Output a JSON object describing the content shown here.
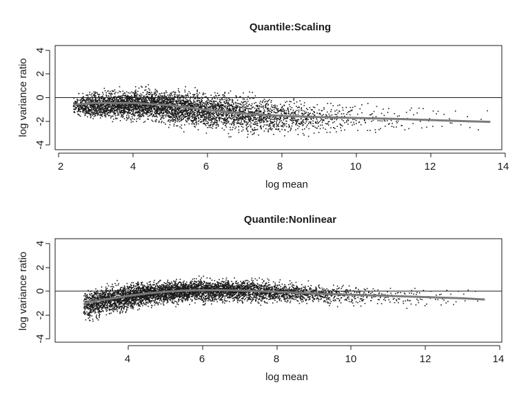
{
  "chart_data": [
    {
      "type": "scatter",
      "title": "Quantile:Scaling",
      "xlabel": "log mean",
      "ylabel": "log variance ratio",
      "xlim": [
        2,
        14
      ],
      "ylim": [
        -4,
        4
      ],
      "xticks": [
        "2",
        "4",
        "6",
        "8",
        "10",
        "12",
        "14"
      ],
      "yticks": [
        "4",
        "2",
        "0",
        "-2",
        "-4"
      ],
      "reference_line": {
        "y": 0
      },
      "colors": {
        "points": "#1a1a1a",
        "trend": "#7a7a7a"
      },
      "scatter_profile": {
        "x": [
          2.4,
          2.8,
          3.5,
          4.0,
          4.5,
          5.0,
          5.5,
          6.0,
          7.0,
          8.0,
          9.0,
          10.0,
          11.0,
          12.0,
          13.0,
          13.6
        ],
        "center": [
          -0.7,
          -0.6,
          -0.55,
          -0.55,
          -0.6,
          -0.75,
          -0.9,
          -1.1,
          -1.35,
          -1.55,
          -1.65,
          -1.7,
          -1.75,
          -1.85,
          -2.0,
          -2.05
        ],
        "spread": [
          0.45,
          0.7,
          0.75,
          0.8,
          0.85,
          0.9,
          0.95,
          1.0,
          1.0,
          0.9,
          0.85,
          0.8,
          0.8,
          0.75,
          0.7,
          0.6
        ],
        "density": [
          0.5,
          1.0,
          1.2,
          1.3,
          1.3,
          1.25,
          1.15,
          1.0,
          0.75,
          0.45,
          0.22,
          0.1,
          0.05,
          0.025,
          0.015,
          0.01
        ]
      },
      "trend_line": {
        "x": [
          2.4,
          3.0,
          4.0,
          5.0,
          6.0,
          7.0,
          8.0,
          9.0,
          10.0,
          11.0,
          12.0,
          13.0,
          13.6
        ],
        "y": [
          -0.6,
          -0.45,
          -0.45,
          -0.65,
          -1.05,
          -1.35,
          -1.55,
          -1.65,
          -1.72,
          -1.8,
          -1.9,
          -2.0,
          -2.05
        ]
      }
    },
    {
      "type": "scatter",
      "title": "Quantile:Nonlinear",
      "xlabel": "log mean",
      "ylabel": "log variance ratio",
      "xlim": [
        2.6,
        14
      ],
      "ylim": [
        -4,
        4
      ],
      "xticks": [
        "4",
        "6",
        "8",
        "10",
        "12",
        "14"
      ],
      "yticks": [
        "4",
        "2",
        "0",
        "-2",
        "-4"
      ],
      "reference_line": {
        "y": 0
      },
      "colors": {
        "points": "#1a1a1a",
        "trend": "#7a7a7a"
      },
      "scatter_profile": {
        "x": [
          2.8,
          3.0,
          3.5,
          4.0,
          4.5,
          5.0,
          5.5,
          6.0,
          6.5,
          7.0,
          8.0,
          9.0,
          10.0,
          11.0,
          12.0,
          13.0,
          13.6
        ],
        "center": [
          -1.2,
          -1.0,
          -0.7,
          -0.45,
          -0.2,
          -0.05,
          0.05,
          0.1,
          0.1,
          0.05,
          -0.05,
          -0.2,
          -0.3,
          -0.4,
          -0.5,
          -0.6,
          -0.7
        ],
        "spread": [
          0.8,
          0.8,
          0.75,
          0.7,
          0.65,
          0.6,
          0.6,
          0.6,
          0.6,
          0.6,
          0.55,
          0.55,
          0.55,
          0.55,
          0.55,
          0.55,
          0.5
        ],
        "density": [
          0.6,
          1.1,
          1.25,
          1.3,
          1.3,
          1.3,
          1.3,
          1.25,
          1.15,
          1.0,
          0.7,
          0.4,
          0.2,
          0.08,
          0.04,
          0.02,
          0.01
        ]
      },
      "trend_line": {
        "x": [
          2.8,
          3.0,
          3.5,
          4.0,
          4.5,
          5.0,
          5.5,
          6.0,
          6.5,
          7.0,
          8.0,
          9.0,
          10.0,
          11.0,
          12.0,
          13.0,
          13.6
        ],
        "y": [
          -1.05,
          -0.9,
          -0.65,
          -0.4,
          -0.2,
          -0.05,
          0.05,
          0.08,
          0.08,
          0.05,
          -0.05,
          -0.2,
          -0.3,
          -0.4,
          -0.5,
          -0.6,
          -0.7
        ]
      }
    }
  ]
}
